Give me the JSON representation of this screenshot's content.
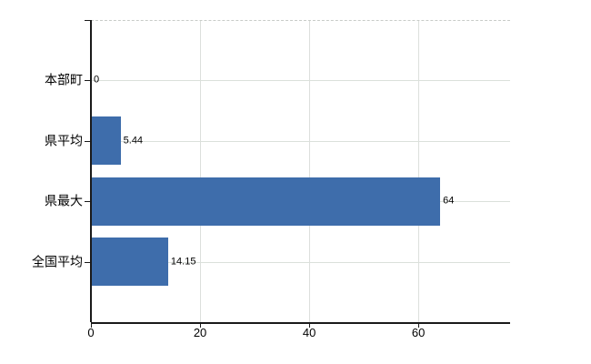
{
  "chart_data": {
    "type": "bar",
    "orientation": "horizontal",
    "title": "",
    "categories": [
      "本部町",
      "県平均",
      "県最大",
      "全国平均"
    ],
    "values": [
      0,
      5.44,
      64,
      14.15
    ],
    "value_labels": [
      "0",
      "5.44",
      "64",
      "14.15"
    ],
    "x_ticks": [
      0,
      20,
      40,
      60
    ],
    "x_tick_labels": [
      "0",
      "20",
      "40",
      "60"
    ],
    "xlim": [
      0,
      76.8
    ],
    "grid": "on",
    "legend": "none",
    "colors": {
      "bar": "#3e6dab",
      "h_grid": "#dbe0db",
      "v_grid": "#dcdfdc",
      "plot_top_border": "#c8ccc8",
      "axis": "#1a1a1a",
      "text": "#000000",
      "background": "#ffffff"
    }
  }
}
